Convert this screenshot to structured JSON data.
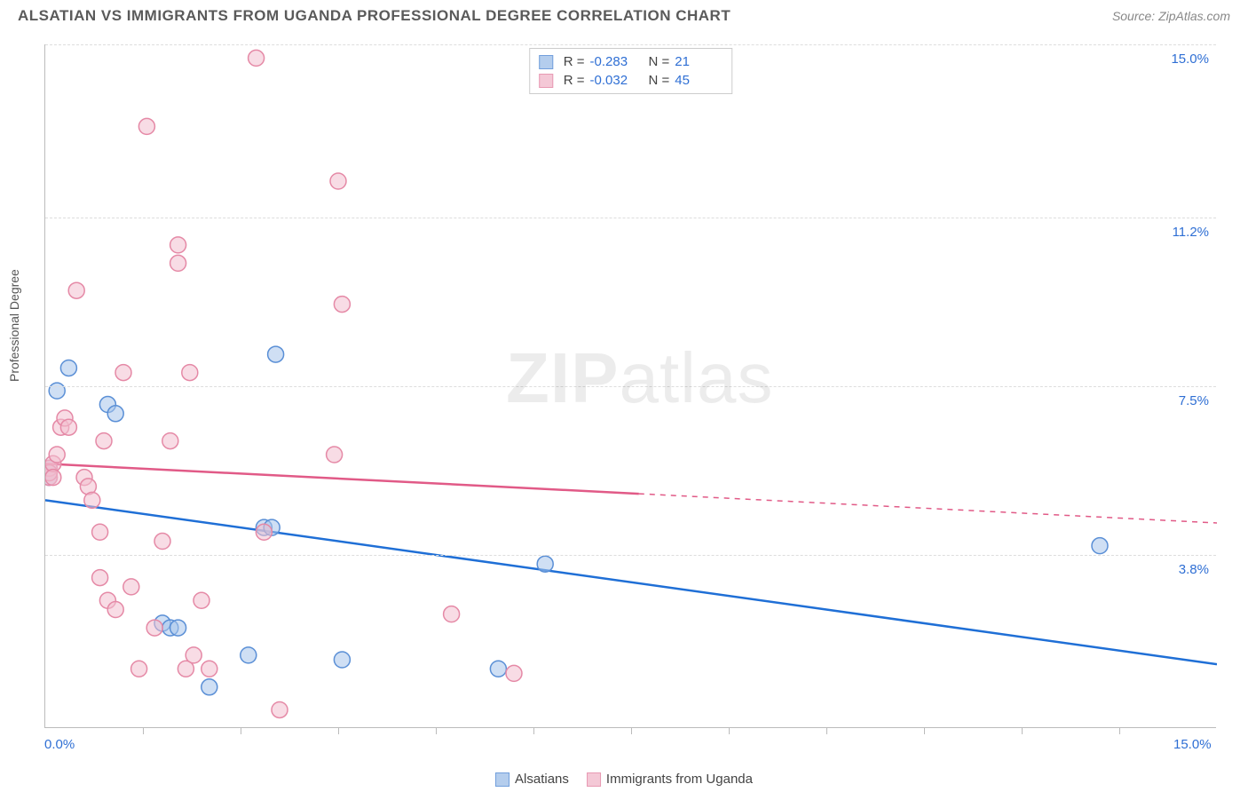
{
  "title": "ALSATIAN VS IMMIGRANTS FROM UGANDA PROFESSIONAL DEGREE CORRELATION CHART",
  "source": "Source: ZipAtlas.com",
  "ylabel": "Professional Degree",
  "watermark_bold": "ZIP",
  "watermark_light": "atlas",
  "chart": {
    "type": "scatter",
    "xlim": [
      0,
      15
    ],
    "ylim": [
      0,
      15
    ],
    "x_unit": "%",
    "y_unit": "%",
    "xtick_positions": [
      1.25,
      2.5,
      3.75,
      5.0,
      6.25,
      7.5,
      8.75,
      10.0,
      11.25,
      12.5,
      13.75
    ],
    "y_gridlines": [
      {
        "value": 15.0,
        "label": "15.0%"
      },
      {
        "value": 11.2,
        "label": "11.2%"
      },
      {
        "value": 7.5,
        "label": "7.5%"
      },
      {
        "value": 3.8,
        "label": "3.8%"
      }
    ],
    "x_min_label": "0.0%",
    "x_max_label": "15.0%",
    "background_color": "#ffffff",
    "grid_color": "#dddddd",
    "axis_color": "#bbbbbb",
    "text_color": "#555555",
    "value_color": "#2f6fd4",
    "marker_radius": 9,
    "marker_stroke_width": 1.5,
    "marker_fill_opacity": 0.25,
    "line_width": 2.5,
    "series": [
      {
        "name": "Alsatians",
        "color_stroke": "#5a8fd6",
        "color_fill": "#a8c5eb",
        "line_color": "#1f6fd6",
        "R": "-0.283",
        "N": "21",
        "trend": {
          "x1": 0.0,
          "y1": 5.0,
          "x2": 15.0,
          "y2": 1.4,
          "solid_until_x": 15.0
        },
        "points": [
          [
            0.05,
            5.6
          ],
          [
            0.05,
            5.7
          ],
          [
            0.05,
            5.5
          ],
          [
            0.15,
            7.4
          ],
          [
            0.3,
            7.9
          ],
          [
            0.8,
            7.1
          ],
          [
            0.9,
            6.9
          ],
          [
            1.5,
            2.3
          ],
          [
            1.6,
            2.2
          ],
          [
            1.7,
            2.2
          ],
          [
            2.1,
            0.9
          ],
          [
            2.6,
            1.6
          ],
          [
            2.8,
            4.4
          ],
          [
            2.9,
            4.4
          ],
          [
            2.95,
            8.2
          ],
          [
            3.8,
            1.5
          ],
          [
            5.8,
            1.3
          ],
          [
            6.4,
            3.6
          ],
          [
            13.5,
            4.0
          ]
        ]
      },
      {
        "name": "Immigrants from Uganda",
        "color_stroke": "#e589a6",
        "color_fill": "#f3bfd0",
        "line_color": "#e15a87",
        "R": "-0.032",
        "N": "45",
        "trend": {
          "x1": 0.0,
          "y1": 5.8,
          "x2": 15.0,
          "y2": 4.5,
          "solid_until_x": 7.6
        },
        "points": [
          [
            0.05,
            5.5
          ],
          [
            0.05,
            5.7
          ],
          [
            0.05,
            5.6
          ],
          [
            0.1,
            5.8
          ],
          [
            0.1,
            5.5
          ],
          [
            0.15,
            6.0
          ],
          [
            0.2,
            6.6
          ],
          [
            0.25,
            6.8
          ],
          [
            0.3,
            6.6
          ],
          [
            0.4,
            9.6
          ],
          [
            0.5,
            5.5
          ],
          [
            0.55,
            5.3
          ],
          [
            0.6,
            5.0
          ],
          [
            0.7,
            3.3
          ],
          [
            0.7,
            4.3
          ],
          [
            0.75,
            6.3
          ],
          [
            0.8,
            2.8
          ],
          [
            0.9,
            2.6
          ],
          [
            1.0,
            7.8
          ],
          [
            1.1,
            3.1
          ],
          [
            1.2,
            1.3
          ],
          [
            1.3,
            13.2
          ],
          [
            1.4,
            2.2
          ],
          [
            1.5,
            4.1
          ],
          [
            1.6,
            6.3
          ],
          [
            1.7,
            10.6
          ],
          [
            1.7,
            10.2
          ],
          [
            1.8,
            1.3
          ],
          [
            1.85,
            7.8
          ],
          [
            1.9,
            1.6
          ],
          [
            2.0,
            2.8
          ],
          [
            2.1,
            1.3
          ],
          [
            2.7,
            14.7
          ],
          [
            2.8,
            4.3
          ],
          [
            3.0,
            0.4
          ],
          [
            3.7,
            6.0
          ],
          [
            3.75,
            12.0
          ],
          [
            3.8,
            9.3
          ],
          [
            5.2,
            2.5
          ],
          [
            6.0,
            1.2
          ]
        ]
      }
    ]
  }
}
